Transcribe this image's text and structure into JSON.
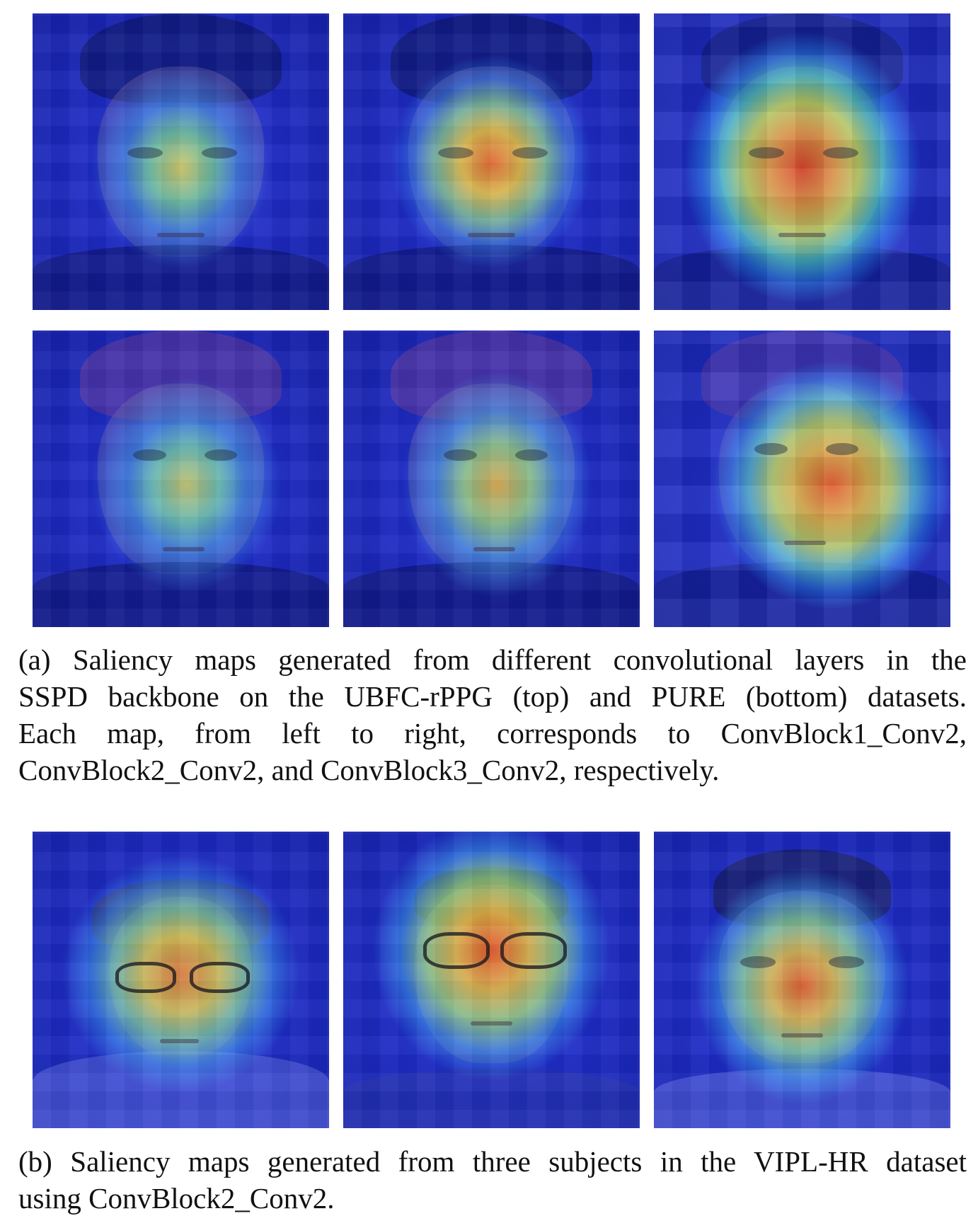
{
  "figure": {
    "panels_a": [
      {
        "row": "top",
        "col": 1
      },
      {
        "row": "top",
        "col": 2
      },
      {
        "row": "top",
        "col": 3
      },
      {
        "row": "bottom",
        "col": 1
      },
      {
        "row": "bottom",
        "col": 2
      },
      {
        "row": "bottom",
        "col": 3
      }
    ],
    "panels_b": [
      {
        "subject": 1
      },
      {
        "subject": 2
      },
      {
        "subject": 3
      }
    ],
    "caption_a_lines": [
      "(a) Saliency maps generated from different convolutional layers in the",
      "SSPD backbone on the UBFC-rPPG (top) and PURE (bottom) datasets.",
      "Each map, from left to right, corresponds to ConvBlock1_Conv2,",
      "ConvBlock2_Conv2, and ConvBlock3_Conv2, respectively."
    ],
    "caption_b_lines": [
      "(b) Saliency maps generated from three subjects in the VIPL-HR dataset",
      "using ConvBlock2_Conv2."
    ]
  }
}
